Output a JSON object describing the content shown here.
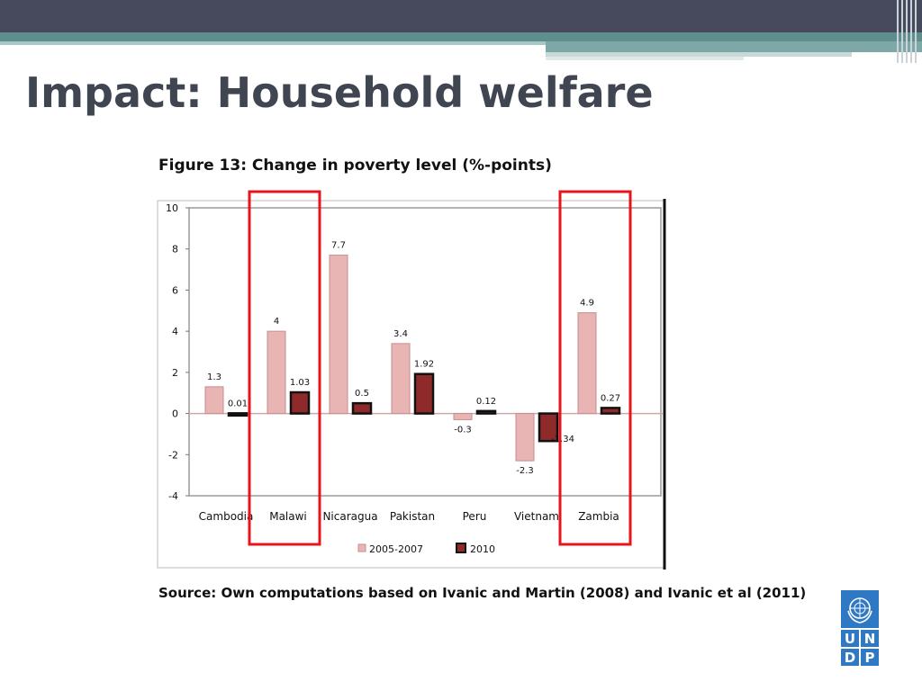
{
  "slide": {
    "title": "Impact: Household welfare",
    "figure_title": "Figure 13: Change in poverty level (%-points)",
    "source": "Source: Own computations based on Ivanic and Martin (2008) and Ivanic et al (2011)",
    "logo": {
      "name": "undp-logo",
      "letters": [
        "U",
        "N",
        "D",
        "P"
      ]
    }
  },
  "colors": {
    "header_bar": "#464a5c",
    "accent_stripe": "#5e8e8e",
    "title_text": "#404552",
    "series_2005_2007": "#e8b4b4",
    "series_2010": "#8e2a2a",
    "highlight_box": "#e8141c",
    "logo_blue": "#2f79c4"
  },
  "chart_data": {
    "type": "bar",
    "categories": [
      "Cambodia",
      "Malawi",
      "Nicaragua",
      "Pakistan",
      "Peru",
      "Vietnam",
      "Zambia"
    ],
    "series": [
      {
        "name": "2005-2007",
        "values": [
          1.3,
          4,
          7.7,
          3.4,
          -0.3,
          -2.3,
          4.9
        ],
        "labels": [
          "1.3",
          "4",
          "7.7",
          "3.4",
          "-0.3",
          "-2.3",
          "4.9"
        ]
      },
      {
        "name": "2010",
        "values": [
          0.01,
          1.03,
          0.5,
          1.92,
          0.12,
          -1.34,
          0.27
        ],
        "labels": [
          "0.01",
          "1.03",
          "0.5",
          "1.92",
          "0.12",
          "-1.34",
          "0.27"
        ]
      }
    ],
    "ylim": [
      -4,
      10
    ],
    "yticks": [
      10,
      8,
      6,
      4,
      2,
      0,
      -2,
      -4
    ],
    "legend_position": "bottom",
    "grid": false,
    "highlighted_categories": [
      "Malawi",
      "Zambia"
    ]
  }
}
